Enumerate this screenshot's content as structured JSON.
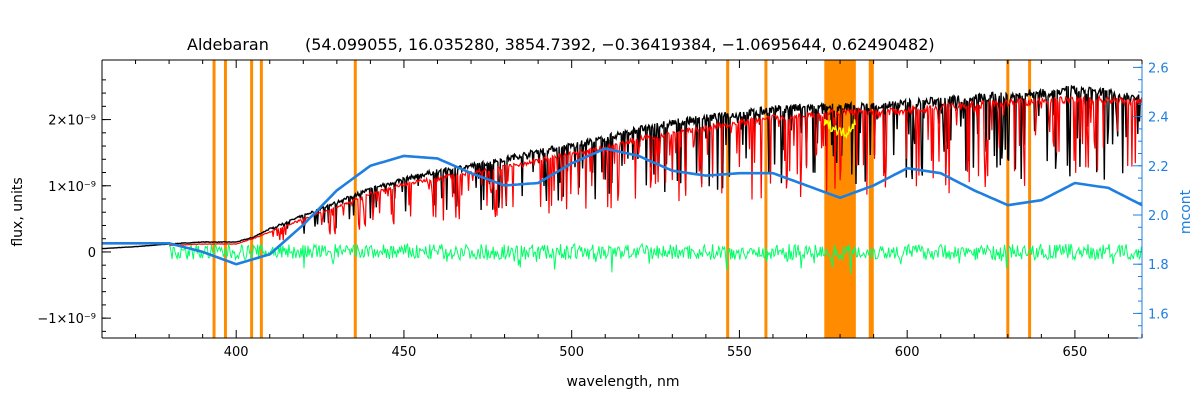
{
  "chart_data": {
    "type": "line",
    "title_star": "Aldebaran",
    "title_params": "(54.099055, 16.035280, 3854.7392, −0.36419384, −1.0695644, 0.62490482)",
    "xlabel": "wavelength, nm",
    "ylabel": "flux, units",
    "ylabel_right": "mcont",
    "xlim": [
      360,
      670
    ],
    "ylim": [
      -1.3e-09,
      2.9e-09
    ],
    "ylim_right": [
      1.5,
      2.63
    ],
    "x_ticks": [
      {
        "value": 400,
        "label": "400"
      },
      {
        "value": 450,
        "label": "450"
      },
      {
        "value": 500,
        "label": "500"
      },
      {
        "value": 550,
        "label": "550"
      },
      {
        "value": 600,
        "label": "600"
      },
      {
        "value": 650,
        "label": "650"
      }
    ],
    "y_ticks": [
      {
        "value": -1e-09,
        "label": "−1×10⁻⁹"
      },
      {
        "value": 0,
        "label": "0"
      },
      {
        "value": 1e-09,
        "label": "1×10⁻⁹"
      },
      {
        "value": 2e-09,
        "label": "2×10⁻⁹"
      }
    ],
    "y_ticks_right": [
      {
        "value": 1.6,
        "label": "1.6"
      },
      {
        "value": 1.8,
        "label": "1.8"
      },
      {
        "value": 2.0,
        "label": "2.0"
      },
      {
        "value": 2.2,
        "label": "2.2"
      },
      {
        "value": 2.4,
        "label": "2.4"
      },
      {
        "value": 2.6,
        "label": "2.6"
      }
    ],
    "masked_lines_nm": [
      393.4,
      396.8,
      404.6,
      407.5,
      435.5,
      546.5,
      557.9,
      589.0,
      589.6,
      630.0,
      636.5
    ],
    "masked_band_nm": [
      575.3,
      584.7
    ],
    "series": [
      {
        "role": "observed",
        "color": "#000000",
        "x": [
          360,
          370,
          380,
          390,
          400,
          405,
          410,
          420,
          430,
          440,
          450,
          460,
          470,
          480,
          490,
          500,
          510,
          520,
          530,
          540,
          550,
          560,
          570,
          580,
          590,
          600,
          610,
          620,
          630,
          640,
          650,
          660,
          670
        ],
        "y": [
          5e-11,
          8e-11,
          1.2e-10,
          1.5e-10,
          1.5e-10,
          2.2e-10,
          3.5e-10,
          5.5e-10,
          7.5e-10,
          9.5e-10,
          1.1e-09,
          1.22e-09,
          1.3e-09,
          1.4e-09,
          1.52e-09,
          1.6e-09,
          1.72e-09,
          1.85e-09,
          1.95e-09,
          2.02e-09,
          2.08e-09,
          2.15e-09,
          2.18e-09,
          2.18e-09,
          2.2e-09,
          2.24e-09,
          2.28e-09,
          2.32e-09,
          2.36e-09,
          2.4e-09,
          2.45e-09,
          2.4e-09,
          2.3e-09
        ]
      },
      {
        "role": "model",
        "color": "#ff0000",
        "x": [
          380,
          390,
          400,
          405,
          410,
          420,
          430,
          440,
          450,
          460,
          470,
          480,
          490,
          500,
          510,
          520,
          530,
          540,
          550,
          560,
          570,
          575,
          585,
          590,
          600,
          610,
          620,
          630,
          640,
          650,
          660,
          670
        ],
        "y": [
          1e-10,
          1.2e-10,
          1.2e-10,
          2e-10,
          3e-10,
          5e-10,
          6.8e-10,
          8.8e-10,
          1.02e-09,
          1.12e-09,
          1.2e-09,
          1.28e-09,
          1.38e-09,
          1.48e-09,
          1.58e-09,
          1.7e-09,
          1.8e-09,
          1.88e-09,
          1.95e-09,
          2.02e-09,
          2.08e-09,
          2.1e-09,
          2.12e-09,
          2.1e-09,
          2.14e-09,
          2.18e-09,
          2.22e-09,
          2.25e-09,
          2.28e-09,
          2.3e-09,
          2.3e-09,
          2.25e-09
        ]
      },
      {
        "role": "model_masked",
        "color": "#ffff00",
        "x": [
          575.3,
          578,
          580,
          582,
          584.7
        ],
        "y": [
          1.95e-09,
          1.88e-09,
          1.82e-09,
          1.8e-09,
          1.98e-09
        ]
      },
      {
        "role": "residual",
        "color": "#00ff66",
        "x": [
          380,
          400,
          430,
          460,
          500,
          540,
          580,
          620,
          670
        ],
        "y": [
          0,
          0,
          0,
          0,
          0,
          0,
          0,
          0,
          0
        ],
        "scatter_amplitude": 1.2e-10
      },
      {
        "role": "mcont",
        "axis": "right",
        "color": "#1e7fe0",
        "x": [
          360,
          380,
          390,
          400,
          410,
          420,
          430,
          440,
          450,
          460,
          470,
          480,
          490,
          500,
          510,
          520,
          530,
          540,
          550,
          560,
          570,
          580,
          590,
          600,
          610,
          620,
          630,
          640,
          650,
          660,
          670
        ],
        "y": [
          1.885,
          1.885,
          1.85,
          1.8,
          1.84,
          1.96,
          2.1,
          2.2,
          2.24,
          2.23,
          2.17,
          2.12,
          2.13,
          2.21,
          2.27,
          2.24,
          2.18,
          2.16,
          2.17,
          2.17,
          2.12,
          2.07,
          2.12,
          2.19,
          2.17,
          2.1,
          2.04,
          2.06,
          2.13,
          2.11,
          2.04
        ]
      }
    ]
  }
}
